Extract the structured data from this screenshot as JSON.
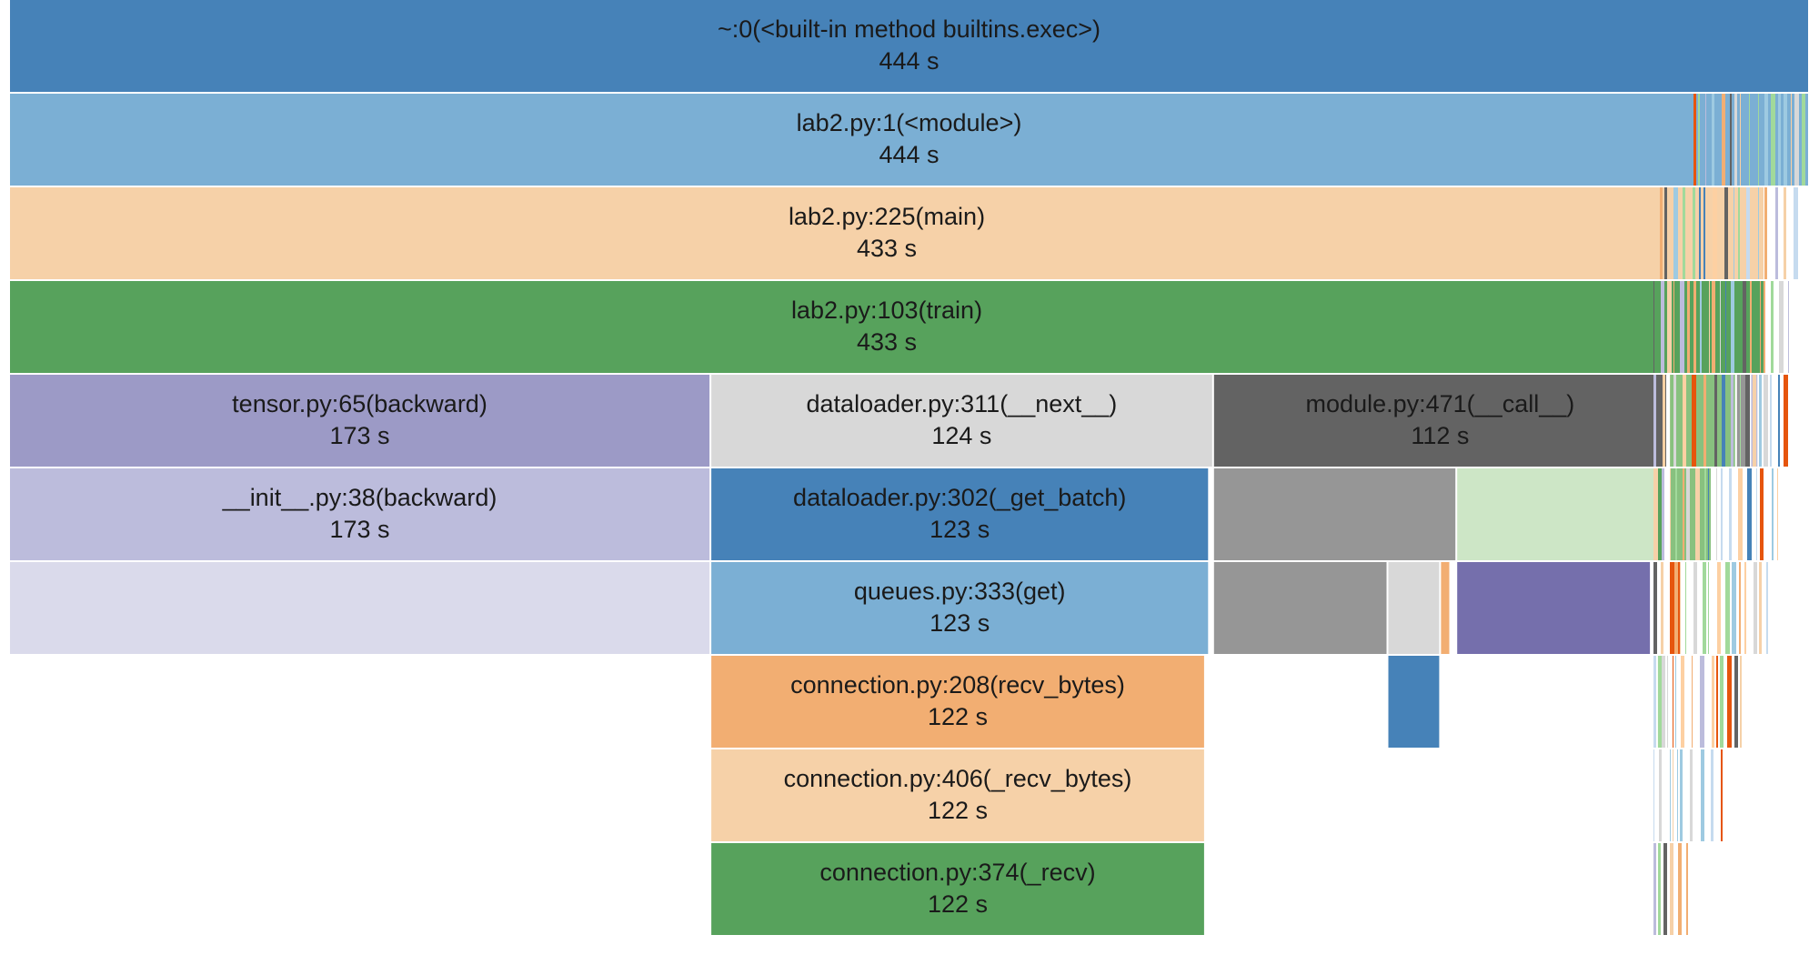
{
  "chart_data": {
    "type": "icicle",
    "unit": "s",
    "frames": [
      {
        "id": "f0",
        "label": "~:0(<built-in method builtins.exec>)",
        "value_label": "444 s",
        "value": 444,
        "depth": 0,
        "start": 0,
        "color": "#4682b8"
      },
      {
        "id": "f1",
        "label": "lab2.py:1(<module>)",
        "value_label": "444 s",
        "value": 444,
        "depth": 1,
        "start": 0,
        "color": "#7bafd4"
      },
      {
        "id": "f2",
        "label": "lab2.py:225(main)",
        "value_label": "433 s",
        "value": 433,
        "depth": 2,
        "start": 0,
        "color": "#f6d1a8"
      },
      {
        "id": "f3",
        "label": "lab2.py:103(train)",
        "value_label": "433 s",
        "value": 433,
        "depth": 3,
        "start": 0,
        "color": "#57a25c"
      },
      {
        "id": "f4",
        "label": "tensor.py:65(backward)",
        "value_label": "173 s",
        "value": 173,
        "depth": 4,
        "start": 0,
        "color": "#9c9ac6"
      },
      {
        "id": "f5",
        "label": "dataloader.py:311(__next__)",
        "value_label": "124 s",
        "value": 124,
        "depth": 4,
        "start": 173,
        "color": "#d8d8d8"
      },
      {
        "id": "f6",
        "label": "module.py:471(__call__)",
        "value_label": "112 s",
        "value": 112,
        "depth": 4,
        "start": 297,
        "color": "#636363"
      },
      {
        "id": "f7",
        "label": "__init__.py:38(backward)",
        "value_label": "173 s",
        "value": 173,
        "depth": 5,
        "start": 0,
        "color": "#bcbcdc"
      },
      {
        "id": "f8",
        "label": "dataloader.py:302(_get_batch)",
        "value_label": "123 s",
        "value": 123,
        "depth": 5,
        "start": 173,
        "color": "#4682b8"
      },
      {
        "id": "f9",
        "label": "",
        "value_label": "",
        "value": 173,
        "depth": 6,
        "start": 0,
        "color": "#dadaeb"
      },
      {
        "id": "f10",
        "label": "queues.py:333(get)",
        "value_label": "123 s",
        "value": 123,
        "depth": 6,
        "start": 173,
        "color": "#7bafd4"
      },
      {
        "id": "f11",
        "label": "connection.py:208(recv_bytes)",
        "value_label": "122 s",
        "value": 122,
        "depth": 7,
        "start": 173,
        "color": "#f2ae72"
      },
      {
        "id": "f12",
        "label": "connection.py:406(_recv_bytes)",
        "value_label": "122 s",
        "value": 122,
        "depth": 8,
        "start": 173,
        "color": "#f6d1a8"
      },
      {
        "id": "f13",
        "label": "connection.py:374(_recv)",
        "value_label": "122 s",
        "value": 122,
        "depth": 9,
        "start": 173,
        "color": "#57a25c"
      },
      {
        "id": "s1",
        "label": "",
        "value_label": "",
        "value": 3.0,
        "depth": 4,
        "start": 409.5,
        "color": "#f6d1a8"
      },
      {
        "id": "s2",
        "label": "",
        "value_label": "",
        "value": 3.0,
        "depth": 5,
        "start": 409.5,
        "color": "#e0e0e0"
      },
      {
        "id": "s3",
        "label": "",
        "value_label": "",
        "value": 3.0,
        "depth": 6,
        "start": 409.5,
        "color": "#f2ae72"
      },
      {
        "id": "m1",
        "label": "",
        "value_label": "",
        "value": 16.5,
        "depth": 4,
        "start": 409.5,
        "color": "#88c17f"
      },
      {
        "id": "m2",
        "label": "",
        "value_label": "",
        "value": 3.5,
        "depth": 4,
        "start": 426,
        "color": "#969696"
      },
      {
        "id": "m3",
        "label": "",
        "value_label": "",
        "value": 2.0,
        "depth": 4,
        "start": 429.5,
        "color": "#bcbcdc"
      },
      {
        "id": "m4",
        "label": "",
        "value_label": "",
        "value": 60.0,
        "depth": 5,
        "start": 297,
        "color": "#969696"
      },
      {
        "id": "m5",
        "label": "",
        "value_label": "",
        "value": 49.5,
        "depth": 5,
        "start": 357,
        "color": "#cde6c6"
      },
      {
        "id": "m6",
        "label": "",
        "value_label": "",
        "value": 1.5,
        "depth": 5,
        "start": 406.5,
        "color": "#57a25c"
      },
      {
        "id": "m7",
        "label": "",
        "value_label": "",
        "value": 10.5,
        "depth": 5,
        "start": 409.5,
        "color": "#88c17f"
      },
      {
        "id": "m8",
        "label": "",
        "value_label": "",
        "value": 43.0,
        "depth": 6,
        "start": 297,
        "color": "#969696"
      },
      {
        "id": "m9",
        "label": "",
        "value_label": "",
        "value": 13.0,
        "depth": 6,
        "start": 340,
        "color": "#d8d8d8"
      },
      {
        "id": "m10",
        "label": "",
        "value_label": "",
        "value": 2.5,
        "depth": 6,
        "start": 353,
        "color": "#f2ae72"
      },
      {
        "id": "m11",
        "label": "",
        "value_label": "",
        "value": 48.0,
        "depth": 6,
        "start": 357,
        "color": "#756fac"
      },
      {
        "id": "m12",
        "label": "",
        "value_label": "",
        "value": 13.0,
        "depth": 7,
        "start": 340,
        "color": "#4682b8"
      },
      {
        "id": "m13",
        "label": "",
        "value_label": "",
        "value": 1.5,
        "depth": 7,
        "start": 406.5,
        "color": "#a1d99b"
      }
    ]
  }
}
